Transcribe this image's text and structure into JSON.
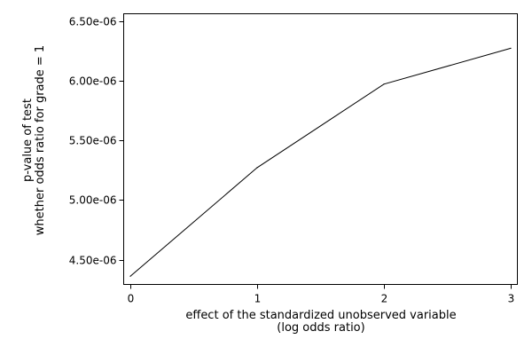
{
  "chart_data": {
    "type": "line",
    "title": "",
    "xlabel_lines": [
      "effect of the standardized unobserved variable",
      "(log odds ratio)"
    ],
    "ylabel_lines": [
      "p-value of test",
      "whether odds ratio for grade = 1"
    ],
    "x": [
      0,
      1,
      2,
      3
    ],
    "series": [
      {
        "values": [
          4.36e-06,
          5.27e-06,
          5.97e-06,
          6.27e-06
        ]
      }
    ],
    "xlim": [
      0,
      3
    ],
    "ylim": [
      4.5e-06,
      6.5e-06
    ],
    "xticks": [
      0,
      1,
      2,
      3
    ],
    "xtick_labels": [
      "0",
      "1",
      "2",
      "3"
    ],
    "yticks": [
      4.5e-06,
      5e-06,
      5.5e-06,
      6e-06,
      6.5e-06
    ],
    "ytick_labels": [
      "4.50e-06",
      "5.00e-06",
      "5.50e-06",
      "6.00e-06",
      "6.50e-06"
    ],
    "grid": false,
    "legend": "none",
    "colors": {
      "line": "#000000",
      "axis": "#000000"
    }
  }
}
